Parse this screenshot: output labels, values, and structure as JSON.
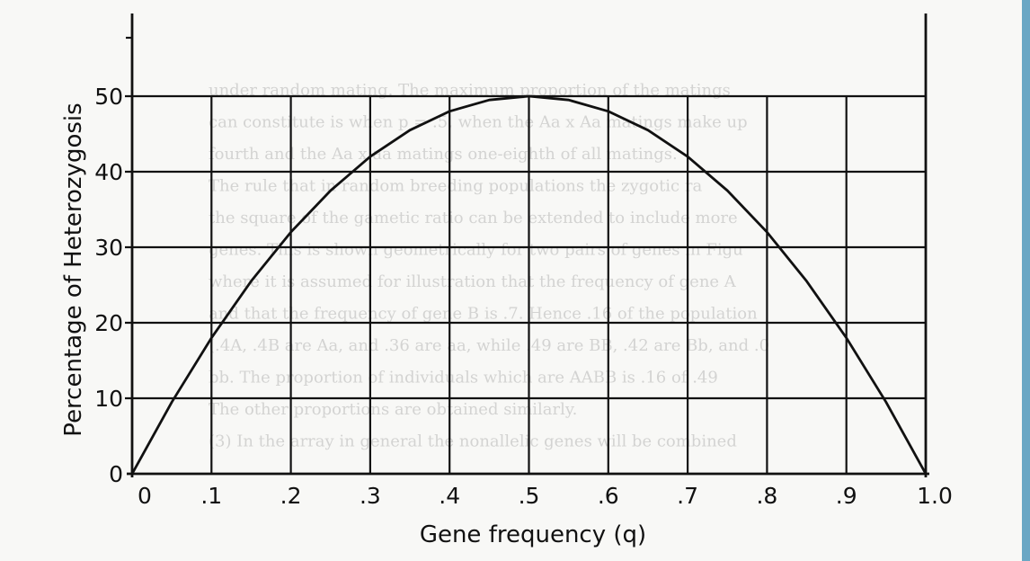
{
  "chart_data": {
    "type": "line",
    "xlabel": "Gene frequency (q)",
    "ylabel": "Percentage of Heterozygosis",
    "xlim": [
      0,
      1.0
    ],
    "ylim": [
      0,
      55
    ],
    "grid": true,
    "x_ticks": [
      "0",
      ".1",
      ".2",
      ".3",
      ".4",
      ".5",
      ".6",
      ".7",
      ".8",
      ".9",
      "1.0"
    ],
    "y_ticks": [
      "0",
      "10",
      "20",
      "30",
      "40",
      "50"
    ],
    "series": [
      {
        "x": [
          0,
          0.05,
          0.1,
          0.15,
          0.2,
          0.25,
          0.3,
          0.35,
          0.4,
          0.45,
          0.5,
          0.55,
          0.6,
          0.65,
          0.7,
          0.75,
          0.8,
          0.85,
          0.9,
          0.95,
          1.0
        ],
        "y": [
          0,
          9.5,
          18,
          25.5,
          32,
          37.5,
          42,
          45.5,
          48,
          49.5,
          50,
          49.5,
          48,
          45.5,
          42,
          37.5,
          32,
          25.5,
          18,
          9.5,
          0
        ]
      }
    ]
  },
  "background_text": [
    "under random mating. The maximum proportion of the matings",
    "can constitute is when p = .5, when the Aa x Aa matings make up",
    "fourth and the Aa x aa matings one-eighth of all matings.",
    "The rule that in random breeding populations the zygotic ra",
    "the square of the gametic ratio can be extended to include more",
    "genes. This is shown geometrically for two pairs of genes in Figu",
    "where it is assumed for illustration that the frequency of gene A",
    "and that the frequency of gene B is .7. Hence .16 of the population",
    "(.4A, .4B are Aa, and .36 are aa, while .49 are BB, .42 are Bb, and .0",
    "bb. The proportion of individuals which are AABB is .16 of .49",
    "The other proportions are obtained similarly.",
    "(3) In the array in general the nonallelic genes will be combined"
  ],
  "colors": {
    "ink": "#111111",
    "paper": "#f8f8f6",
    "edge_bar": "#6aa7c4"
  }
}
